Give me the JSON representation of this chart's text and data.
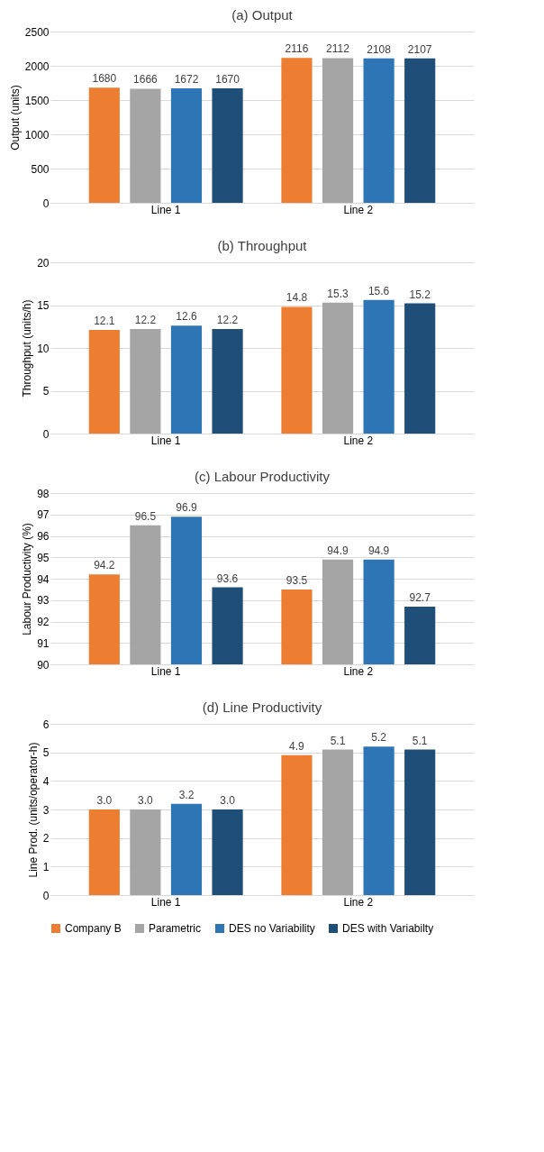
{
  "chart_data": [
    {
      "type": "bar",
      "title": "(a) Output",
      "ylabel": "Output (units)",
      "categories": [
        "Line 1",
        "Line 2"
      ],
      "ylim": [
        0,
        2500
      ],
      "yticks": [
        0,
        500,
        1000,
        1500,
        2000,
        2500
      ],
      "grid": "y",
      "series": [
        {
          "color": "#ed7d31",
          "values": [
            1680,
            2116
          ],
          "value_labels": [
            "1680",
            "2116"
          ]
        },
        {
          "color": "#a5a5a5",
          "values": [
            1666,
            2112
          ],
          "value_labels": [
            "1666",
            "2112"
          ]
        },
        {
          "color": "#2e75b6",
          "values": [
            1672,
            2108
          ],
          "value_labels": [
            "1672",
            "2108"
          ]
        },
        {
          "color": "#1f4e79",
          "values": [
            1670,
            2107
          ],
          "value_labels": [
            "1670",
            "2107"
          ]
        }
      ]
    },
    {
      "type": "bar",
      "title": "(b) Throughput",
      "ylabel": "Throughput (units/h)",
      "categories": [
        "Line 1",
        "Line 2"
      ],
      "ylim": [
        0,
        20
      ],
      "yticks": [
        0,
        5,
        10,
        15,
        20
      ],
      "grid": "y",
      "series": [
        {
          "color": "#ed7d31",
          "values": [
            12.1,
            14.8
          ],
          "value_labels": [
            "12.1",
            "14.8"
          ]
        },
        {
          "color": "#a5a5a5",
          "values": [
            12.2,
            15.3
          ],
          "value_labels": [
            "12.2",
            "15.3"
          ]
        },
        {
          "color": "#2e75b6",
          "values": [
            12.6,
            15.6
          ],
          "value_labels": [
            "12.6",
            "15.6"
          ]
        },
        {
          "color": "#1f4e79",
          "values": [
            12.2,
            15.2
          ],
          "value_labels": [
            "12.2",
            "15.2"
          ]
        }
      ]
    },
    {
      "type": "bar",
      "title": "(c) Labour Productivity",
      "ylabel": "Labour Productivity (%)",
      "categories": [
        "Line 1",
        "Line 2"
      ],
      "ylim": [
        90,
        98
      ],
      "yticks": [
        90,
        91,
        92,
        93,
        94,
        95,
        96,
        97,
        98
      ],
      "grid": "y",
      "series": [
        {
          "color": "#ed7d31",
          "values": [
            94.2,
            93.5
          ],
          "value_labels": [
            "94.2",
            "93.5"
          ]
        },
        {
          "color": "#a5a5a5",
          "values": [
            96.5,
            94.9
          ],
          "value_labels": [
            "96.5",
            "94.9"
          ]
        },
        {
          "color": "#2e75b6",
          "values": [
            96.9,
            94.9
          ],
          "value_labels": [
            "96.9",
            "94.9"
          ]
        },
        {
          "color": "#1f4e79",
          "values": [
            93.6,
            92.7
          ],
          "value_labels": [
            "93.6",
            "92.7"
          ]
        }
      ]
    },
    {
      "type": "bar",
      "title": "(d) Line Productivity",
      "ylabel": "Line Prod. (units/operator-h)",
      "categories": [
        "Line 1",
        "Line 2"
      ],
      "ylim": [
        0,
        6
      ],
      "yticks": [
        0,
        1,
        2,
        3,
        4,
        5,
        6
      ],
      "grid": "y",
      "legend": "bottom",
      "series": [
        {
          "name": "Company B",
          "color": "#ed7d31",
          "values": [
            3.0,
            4.9
          ],
          "value_labels": [
            "3.0",
            "4.9"
          ]
        },
        {
          "name": "Parametric",
          "color": "#a5a5a5",
          "values": [
            3.0,
            5.1
          ],
          "value_labels": [
            "3.0",
            "5.1"
          ]
        },
        {
          "name": "DES no Variability",
          "color": "#2e75b6",
          "values": [
            3.2,
            5.2
          ],
          "value_labels": [
            "3.2",
            "5.2"
          ]
        },
        {
          "name": "DES with Variabilty",
          "color": "#1f4e79",
          "values": [
            3.0,
            5.1
          ],
          "value_labels": [
            "3.0",
            "5.1"
          ]
        }
      ]
    }
  ]
}
